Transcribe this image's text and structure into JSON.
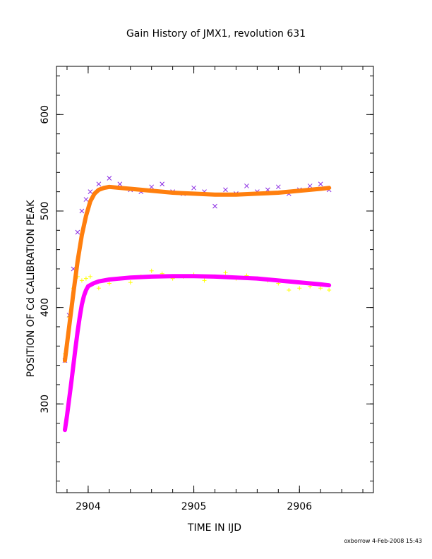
{
  "chart_data": {
    "type": "scatter",
    "title": "Gain History of JMX1, revolution 631",
    "xlabel": "TIME IN IJD",
    "ylabel": "POSITION OF Cd CALIBRATION PEAK",
    "xlim": [
      2903.7,
      2906.7
    ],
    "ylim": [
      208,
      650
    ],
    "xticks": [
      2904,
      2905,
      2906
    ],
    "yticks": [
      300,
      400,
      500,
      600
    ],
    "grid": false,
    "series": [
      {
        "marker": "x",
        "color": "#8a2be2",
        "x": [
          2903.78,
          2903.82,
          2903.86,
          2903.9,
          2903.94,
          2903.98,
          2904.02,
          2904.1,
          2904.2,
          2904.3,
          2904.4,
          2904.5,
          2904.6,
          2904.7,
          2904.8,
          2904.9,
          2905.0,
          2905.1,
          2905.2,
          2905.3,
          2905.4,
          2905.5,
          2905.6,
          2905.7,
          2905.8,
          2905.9,
          2906.0,
          2906.1,
          2906.2,
          2906.28
        ],
        "y": [
          345,
          392,
          440,
          478,
          500,
          512,
          520,
          528,
          534,
          528,
          522,
          520,
          525,
          528,
          520,
          518,
          524,
          520,
          505,
          522,
          518,
          526,
          520,
          522,
          525,
          518,
          522,
          526,
          528,
          522
        ]
      },
      {
        "marker": "+",
        "color": "#ffff00",
        "x": [
          2903.78,
          2903.82,
          2903.86,
          2903.9,
          2903.94,
          2903.98,
          2904.02,
          2904.1,
          2904.2,
          2904.3,
          2904.4,
          2904.5,
          2904.6,
          2904.7,
          2904.8,
          2904.9,
          2905.0,
          2905.1,
          2905.2,
          2905.3,
          2905.4,
          2905.5,
          2905.6,
          2905.7,
          2905.8,
          2905.9,
          2906.0,
          2906.1,
          2906.2,
          2906.28
        ],
        "y": [
          352,
          390,
          420,
          432,
          428,
          430,
          432,
          420,
          425,
          430,
          426,
          432,
          438,
          435,
          430,
          432,
          434,
          428,
          432,
          436,
          430,
          433,
          430,
          428,
          425,
          418,
          420,
          422,
          420,
          418
        ]
      },
      {
        "name": "",
        "color": "#ff7f0e",
        "x": [
          2903.78,
          2903.82,
          2903.86,
          2903.9,
          2903.94,
          2903.98,
          2904.02,
          2904.06,
          2904.1,
          2904.15,
          2904.2,
          2904.3,
          2904.4,
          2904.5,
          2904.6,
          2904.8,
          2905.0,
          2905.2,
          2905.4,
          2905.6,
          2905.8,
          2906.0,
          2906.1,
          2906.2,
          2906.28
        ],
        "y": [
          345,
          380,
          415,
          448,
          475,
          495,
          510,
          518,
          522,
          524,
          525,
          524,
          523,
          522,
          521,
          519,
          518,
          517,
          517,
          518,
          519,
          521,
          522,
          523,
          524
        ]
      },
      {
        "name": "",
        "color": "#ff00ff",
        "x": [
          2903.78,
          2903.8,
          2903.82,
          2903.84,
          2903.86,
          2903.88,
          2903.9,
          2903.92,
          2903.94,
          2903.96,
          2903.98,
          2904.0,
          2904.05,
          2904.1,
          2904.15,
          2904.2,
          2904.3,
          2904.4,
          2904.6,
          2904.8,
          2905.0,
          2905.2,
          2905.4,
          2905.6,
          2905.8,
          2906.0,
          2906.1,
          2906.2,
          2906.28
        ],
        "y": [
          273,
          288,
          305,
          322,
          340,
          358,
          375,
          390,
          403,
          412,
          418,
          422,
          425,
          427,
          428,
          429,
          430,
          431,
          432,
          432.5,
          432.5,
          432,
          431,
          430,
          428,
          426,
          425,
          424,
          423
        ]
      }
    ]
  },
  "footer": "oxborrow  4-Feb-2008 15:43"
}
